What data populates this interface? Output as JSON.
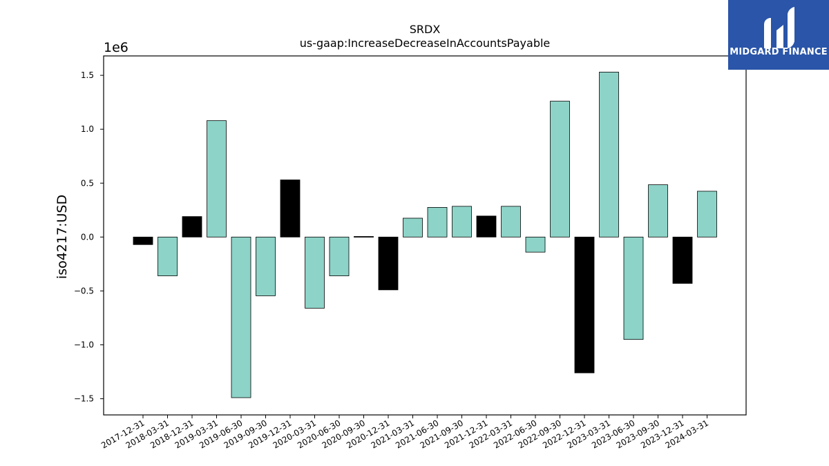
{
  "brand": {
    "name": "MIDGARD FINANCE",
    "bg_color": "#2a55a8"
  },
  "chart_data": {
    "type": "bar",
    "title": "SRDX",
    "subtitle": "us-gaap:IncreaseDecreaseInAccountsPayable",
    "ylabel": "iso4217:USD",
    "xlabel": "",
    "scale_label": "1e6",
    "ylim": [
      -1.65,
      1.68
    ],
    "y_multiplier": 1000000,
    "yticks": [
      -1.5,
      -1.0,
      -0.5,
      0.0,
      0.5,
      1.0,
      1.5
    ],
    "ytick_labels": [
      "−1.5",
      "−1.0",
      "−0.5",
      "0.0",
      "0.5",
      "1.0",
      "1.5"
    ],
    "grid": false,
    "colors": {
      "default": "#8dd3c7",
      "highlight": "#000000",
      "edge": "#000000"
    },
    "categories": [
      "2017-12-31",
      "2018-03-31",
      "2018-12-31",
      "2019-03-31",
      "2019-06-30",
      "2019-09-30",
      "2019-12-31",
      "2020-03-31",
      "2020-06-30",
      "2020-09-30",
      "2020-12-31",
      "2021-03-31",
      "2021-06-30",
      "2021-09-30",
      "2021-12-31",
      "2022-03-31",
      "2022-06-30",
      "2022-09-30",
      "2022-12-31",
      "2023-03-31",
      "2023-06-30",
      "2023-09-30",
      "2023-12-31",
      "2024-03-31"
    ],
    "values": [
      -0.07,
      -0.36,
      0.19,
      1.08,
      -1.49,
      -0.545,
      0.53,
      -0.66,
      -0.36,
      0.005,
      -0.49,
      0.175,
      0.275,
      0.285,
      0.195,
      0.285,
      -0.14,
      1.26,
      -1.26,
      1.53,
      -0.95,
      0.485,
      -0.43,
      0.425
    ],
    "highlight": [
      true,
      false,
      true,
      false,
      false,
      false,
      true,
      false,
      false,
      true,
      true,
      false,
      false,
      false,
      true,
      false,
      false,
      false,
      true,
      false,
      false,
      false,
      true,
      false
    ]
  }
}
